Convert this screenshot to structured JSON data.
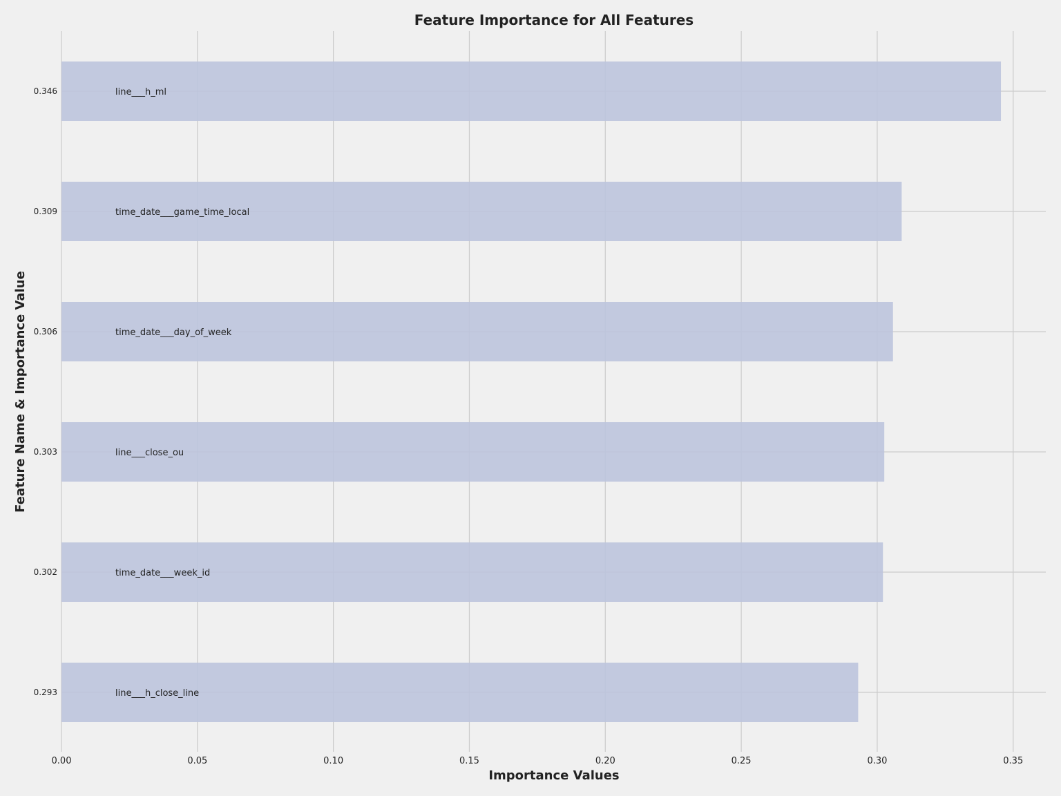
{
  "chart_data": {
    "type": "bar",
    "orientation": "horizontal",
    "title": "Feature Importance for All Features",
    "xlabel": "Importance Values",
    "ylabel": "Feature Name & Importance Value",
    "xlim": [
      0,
      0.362
    ],
    "xticks": [
      "0.00",
      "0.05",
      "0.10",
      "0.15",
      "0.20",
      "0.25",
      "0.30",
      "0.35"
    ],
    "grid": true,
    "bar_color": "#bcc4dd",
    "background": "#f0f0f0",
    "categories": [
      "line___h_ml",
      "time_date___game_time_local",
      "time_date___day_of_week",
      "line___close_ou",
      "time_date___week_id",
      "line___h_close_line"
    ],
    "tick_labels": [
      "0.346",
      "0.309",
      "0.306",
      "0.303",
      "0.302",
      "0.293"
    ],
    "values": [
      0.3455,
      0.309,
      0.3058,
      0.3026,
      0.3021,
      0.293
    ]
  }
}
